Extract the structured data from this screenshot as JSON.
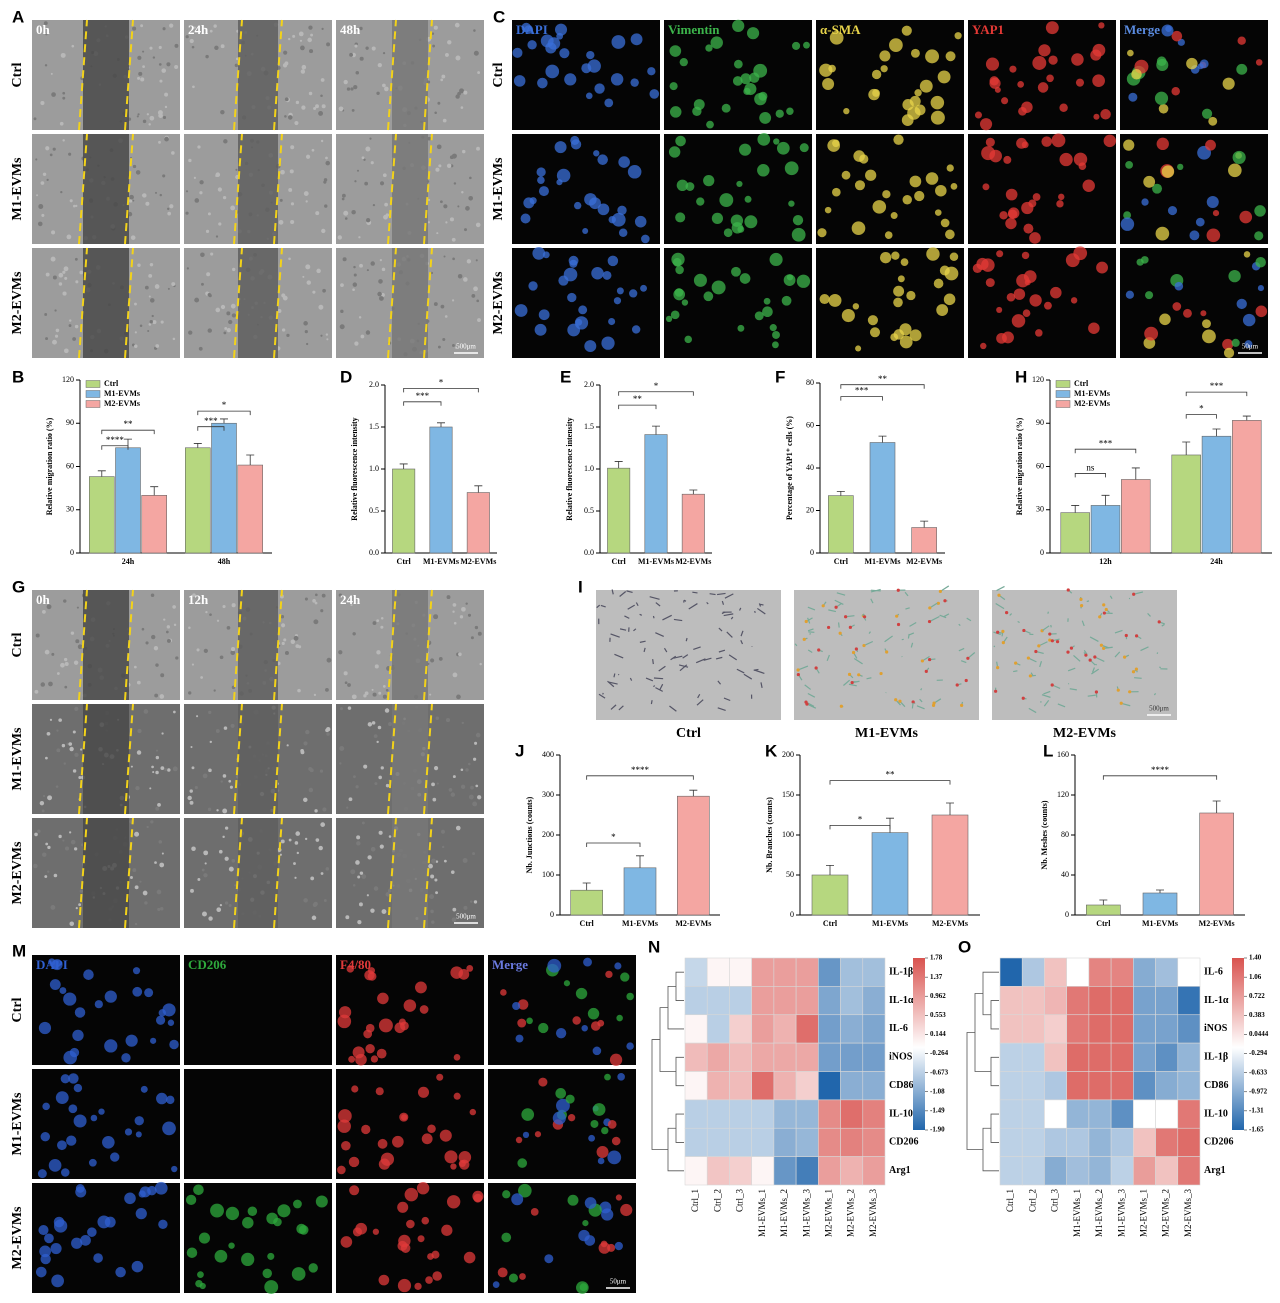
{
  "image_panels": [
    {
      "panel": "A",
      "columns": [
        "0h",
        "24h",
        "48h"
      ],
      "rows": [
        "Ctrl",
        "M1-EVMs",
        "M2-EVMs"
      ],
      "scale_bar": "500μm"
    },
    {
      "panel": "C",
      "columns": [
        "DAPI",
        "Vimentin",
        "α-SMA",
        "YAP1",
        "Merge"
      ],
      "column_colors": [
        "#3a6fd8",
        "#3cb44b",
        "#e8d44a",
        "#e53935",
        "#5a8be0"
      ],
      "rows": [
        "Ctrl",
        "M1-EVMs",
        "M2-EVMs"
      ],
      "scale_bar": "50μm"
    },
    {
      "panel": "G",
      "columns": [
        "0h",
        "12h",
        "24h"
      ],
      "rows": [
        "Ctrl",
        "M1-EVMs",
        "M2-EVMs"
      ],
      "scale_bar": "500μm"
    },
    {
      "panel": "I",
      "labels": [
        "Ctrl",
        "M1-EVMs",
        "M2-EVMs"
      ],
      "scale_bar": "500μm"
    },
    {
      "panel": "M",
      "columns": [
        "DAPI",
        "CD206",
        "F4/80",
        "Merge"
      ],
      "column_colors": [
        "#2f5fd0",
        "#2eaa3c",
        "#e03a3a",
        "#6a7ae0"
      ],
      "rows": [
        "Ctrl",
        "M1-EVMs",
        "M2-EVMs"
      ],
      "scale_bar": "50μm"
    }
  ],
  "chart_data": [
    {
      "type": "bar",
      "panel": "B",
      "y_label": "Relative migration ratio (%)",
      "categories": [
        "24h",
        "48h"
      ],
      "series": [
        {
          "name": "Ctrl",
          "color": "#b6d77f",
          "values": [
            53,
            73
          ],
          "errors": [
            4,
            3
          ]
        },
        {
          "name": "M1-EVMs",
          "color": "#7fb7e3",
          "values": [
            73,
            90
          ],
          "errors": [
            6,
            3
          ]
        },
        {
          "name": "M2-EVMs",
          "color": "#f4a6a2",
          "values": [
            40,
            61
          ],
          "errors": [
            6,
            7
          ]
        }
      ],
      "ylim": [
        0,
        120
      ],
      "yticks": [
        0,
        30,
        60,
        90,
        120
      ],
      "legend": "upper left",
      "annotations": [
        "****",
        "**",
        "***",
        "*"
      ]
    },
    {
      "type": "bar",
      "panel": "D",
      "y_label": "Relative fluorescence intensity",
      "categories": [
        "Ctrl",
        "M1-EVMs",
        "M2-EVMs"
      ],
      "values": [
        1.0,
        1.5,
        0.72
      ],
      "errors": [
        0.06,
        0.05,
        0.08
      ],
      "colors": [
        "#b6d77f",
        "#7fb7e3",
        "#f4a6a2"
      ],
      "ylim": [
        0,
        2
      ],
      "yticks": [
        {
          "value": 0,
          "label": "0.0"
        },
        0.5,
        {
          "value": 1,
          "label": "1.0"
        },
        1.5,
        {
          "value": 2,
          "label": "2.0"
        }
      ],
      "annotations": [
        "***",
        "*"
      ]
    },
    {
      "type": "bar",
      "panel": "E",
      "y_label": "Relative fluorescence intensity",
      "categories": [
        "Ctrl",
        "M1-EVMs",
        "M2-EVMs"
      ],
      "values": [
        1.01,
        1.41,
        0.7
      ],
      "errors": [
        0.08,
        0.1,
        0.05
      ],
      "colors": [
        "#b6d77f",
        "#7fb7e3",
        "#f4a6a2"
      ],
      "ylim": [
        0,
        2
      ],
      "yticks": [
        {
          "value": 0,
          "label": "0.0"
        },
        0.5,
        {
          "value": 1,
          "label": "1.0"
        },
        1.5,
        {
          "value": 2,
          "label": "2.0"
        }
      ],
      "annotations": [
        "**",
        "*"
      ]
    },
    {
      "type": "bar",
      "panel": "F",
      "y_label": "Percentage of YAP1⁺ cells (%)",
      "categories": [
        "Ctrl",
        "M1-EVMs",
        "M2-EVMs"
      ],
      "values": [
        27,
        52,
        12
      ],
      "errors": [
        2,
        3,
        3
      ],
      "colors": [
        "#b6d77f",
        "#7fb7e3",
        "#f4a6a2"
      ],
      "ylim": [
        0,
        80
      ],
      "yticks": [
        0,
        20,
        40,
        60,
        80
      ],
      "annotations": [
        "***",
        "**"
      ]
    },
    {
      "type": "bar",
      "panel": "H",
      "y_label": "Relative migration ratio (%)",
      "categories": [
        "12h",
        "24h"
      ],
      "series": [
        {
          "name": "Ctrl",
          "color": "#b6d77f",
          "values": [
            28,
            68
          ],
          "errors": [
            5,
            9
          ]
        },
        {
          "name": "M1-EVMs",
          "color": "#7fb7e3",
          "values": [
            33,
            81
          ],
          "errors": [
            7,
            5
          ]
        },
        {
          "name": "M2-EVMs",
          "color": "#f4a6a2",
          "values": [
            51,
            92
          ],
          "errors": [
            8,
            3
          ]
        }
      ],
      "ylim": [
        0,
        120
      ],
      "yticks": [
        0,
        30,
        60,
        90,
        120
      ],
      "legend": "upper left",
      "annotations": [
        "ns",
        "***",
        "*",
        "***"
      ]
    },
    {
      "type": "bar",
      "panel": "J",
      "y_label": "Nb. Junctions (counts)",
      "categories": [
        "Ctrl",
        "M1-EVMs",
        "M2-EVMs"
      ],
      "values": [
        62,
        118,
        297
      ],
      "errors": [
        18,
        30,
        15
      ],
      "colors": [
        "#b6d77f",
        "#7fb7e3",
        "#f4a6a2"
      ],
      "ylim": [
        0,
        400
      ],
      "yticks": [
        0,
        100,
        200,
        300,
        400
      ],
      "annotations": [
        "*",
        "****"
      ]
    },
    {
      "type": "bar",
      "panel": "K",
      "y_label": "Nb. Branches (counts)",
      "categories": [
        "Ctrl",
        "M1-EVMs",
        "M2-EVMs"
      ],
      "values": [
        50,
        103,
        125
      ],
      "errors": [
        12,
        18,
        15
      ],
      "colors": [
        "#b6d77f",
        "#7fb7e3",
        "#f4a6a2"
      ],
      "ylim": [
        0,
        200
      ],
      "yticks": [
        0,
        50,
        100,
        150,
        200
      ],
      "annotations": [
        "*",
        "**"
      ]
    },
    {
      "type": "bar",
      "panel": "L",
      "y_label": "Nb. Meshes (counts)",
      "categories": [
        "Ctrl",
        "M1-EVMs",
        "M2-EVMs"
      ],
      "values": [
        10,
        22,
        102
      ],
      "errors": [
        5,
        3,
        12
      ],
      "colors": [
        "#b6d77f",
        "#7fb7e3",
        "#f4a6a2"
      ],
      "ylim": [
        0,
        160
      ],
      "yticks": [
        0,
        40,
        80,
        120,
        160
      ],
      "annotations": [
        "****"
      ]
    },
    {
      "type": "heatmap",
      "panel": "N",
      "rows": [
        "IL-1β",
        "IL-1α",
        "IL-6",
        "iNOS",
        "CD86",
        "IL-10",
        "CD206",
        "Arg1"
      ],
      "columns": [
        "Ctrl_1",
        "Ctrl_2",
        "Ctrl_3",
        "M1-EVMs_1",
        "M1-EVMs_2",
        "M1-EVMs_3",
        "M2-EVMs_1",
        "M2-EVMs_2",
        "M2-EVMs_3"
      ],
      "values": [
        [
          -0.5,
          0.1,
          0.1,
          1.0,
          1.0,
          1.0,
          -1.3,
          -0.8,
          -0.8
        ],
        [
          -0.6,
          -0.6,
          -0.6,
          1.0,
          1.0,
          1.0,
          -1.1,
          -0.8,
          -1.0
        ],
        [
          0.1,
          -0.6,
          0.5,
          1.0,
          0.8,
          1.5,
          -1.2,
          -1.0,
          -1.1
        ],
        [
          0.7,
          0.9,
          0.7,
          0.9,
          0.9,
          0.9,
          -1.2,
          -1.2,
          -1.2
        ],
        [
          0.1,
          0.8,
          0.7,
          1.5,
          0.8,
          0.5,
          -1.9,
          -1.0,
          -1.0
        ],
        [
          -0.6,
          -0.6,
          -0.6,
          -0.6,
          -0.9,
          -0.9,
          1.2,
          1.5,
          1.3
        ],
        [
          -0.6,
          -0.6,
          -0.6,
          -0.6,
          -1.0,
          -0.9,
          1.2,
          1.3,
          1.2
        ],
        [
          0.1,
          0.6,
          0.5,
          0.1,
          -1.3,
          -1.6,
          1.0,
          0.8,
          1.0
        ]
      ],
      "zlim": [
        -1.9,
        1.78
      ],
      "colorbar_ticks": [
        1.78,
        1.37,
        0.962,
        0.553,
        0.144,
        -0.264,
        -0.673,
        -1.08,
        -1.49,
        {
          "value": -1.9,
          "label": "-1.90"
        }
      ]
    },
    {
      "type": "heatmap",
      "panel": "O",
      "rows": [
        "IL-6",
        "IL-1α",
        "iNOS",
        "IL-1β",
        "CD86",
        "IL-10",
        "CD206",
        "Arg1"
      ],
      "columns": [
        "Ctrl_1",
        "Ctrl_2",
        "Ctrl_3",
        "M1-EVMs_1",
        "M1-EVMs_2",
        "M1-EVMs_3",
        "M2-EVMs_1",
        "M2-EVMs_2",
        "M2-EVMs_3"
      ],
      "values": [
        [
          -1.65,
          -0.6,
          0.5,
          0.0,
          1.0,
          1.0,
          -0.9,
          -0.7,
          0.0
        ],
        [
          0.5,
          0.5,
          0.6,
          1.1,
          1.2,
          1.2,
          -1.0,
          -1.0,
          -1.5
        ],
        [
          0.5,
          0.5,
          0.4,
          1.1,
          1.2,
          1.2,
          -1.0,
          -1.0,
          -1.2
        ],
        [
          -0.5,
          -0.5,
          0.5,
          1.2,
          1.2,
          1.2,
          -1.0,
          -1.2,
          -0.8
        ],
        [
          -0.5,
          -0.5,
          -0.6,
          1.2,
          1.2,
          1.2,
          -1.2,
          -0.9,
          -0.8
        ],
        [
          -0.5,
          -0.5,
          0.0,
          -0.8,
          -0.8,
          -1.2,
          0.0,
          0.0,
          1.1
        ],
        [
          -0.5,
          -0.5,
          -0.6,
          -0.6,
          -0.8,
          -0.6,
          0.5,
          1.1,
          1.2
        ],
        [
          -0.5,
          -0.5,
          -0.9,
          -0.7,
          -0.8,
          -0.5,
          0.8,
          0.5,
          1.1
        ]
      ],
      "zlim": [
        -1.65,
        1.4
      ],
      "colorbar_ticks": [
        {
          "value": 1.4,
          "label": "1.40"
        },
        1.06,
        0.722,
        0.383,
        0.0444,
        -0.294,
        -0.633,
        -0.972,
        -1.31,
        -1.65
      ]
    }
  ]
}
